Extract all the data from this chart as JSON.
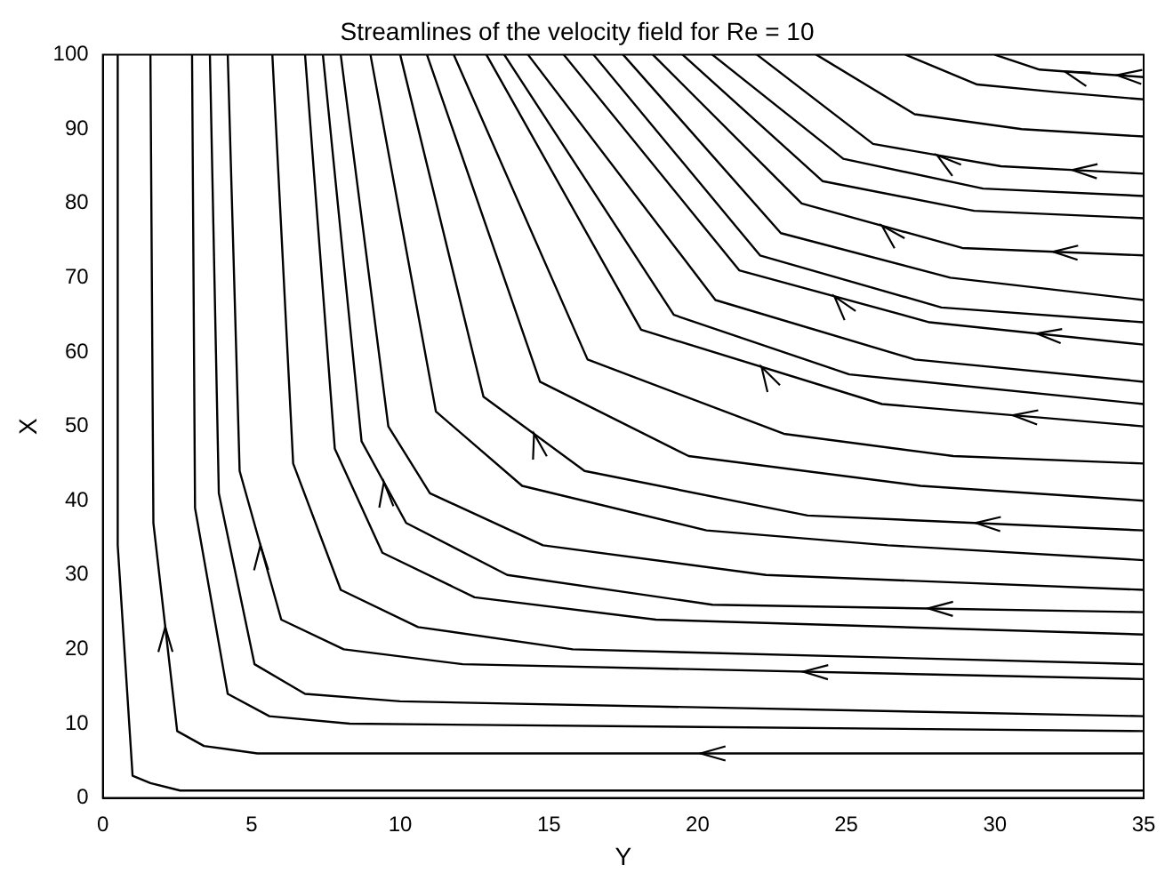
{
  "chart_data": {
    "type": "line",
    "title": "Streamlines of the velocity field for Re = 10",
    "xlabel": "Y",
    "ylabel": "X",
    "xlim": [
      0,
      35
    ],
    "ylim": [
      0,
      100
    ],
    "xticks": [
      0,
      5,
      10,
      15,
      20,
      25,
      30,
      35
    ],
    "yticks": [
      0,
      10,
      20,
      30,
      40,
      50,
      60,
      70,
      80,
      90,
      100
    ],
    "grid": false,
    "legend": false,
    "marker": "none",
    "line_style": "solid",
    "series": [
      {
        "color": "#000000",
        "x": [
          0.5,
          0.5,
          1,
          1.6,
          2.6,
          35
        ],
        "values": [
          100,
          34,
          3,
          2,
          1,
          1
        ]
      },
      {
        "color": "#000000",
        "x": [
          1.6,
          1.7,
          2.5,
          3.4,
          5.2,
          35
        ],
        "values": [
          100,
          37,
          9,
          7,
          6,
          6
        ]
      },
      {
        "color": "#000000",
        "x": [
          3,
          3.1,
          4.2,
          5.6,
          8.3,
          35
        ],
        "values": [
          100,
          39,
          14,
          11,
          10,
          9
        ]
      },
      {
        "color": "#000000",
        "x": [
          3.6,
          3.9,
          5.1,
          6.8,
          10,
          35
        ],
        "values": [
          100,
          41,
          18,
          14,
          13,
          11
        ]
      },
      {
        "color": "#000000",
        "x": [
          4.2,
          4.6,
          6,
          8.1,
          12.1,
          35
        ],
        "values": [
          100,
          44,
          24,
          20,
          18,
          16
        ]
      },
      {
        "color": "#000000",
        "x": [
          5.7,
          6.4,
          8,
          10.6,
          15.8,
          35
        ],
        "values": [
          100,
          45,
          28,
          23,
          20,
          18
        ]
      },
      {
        "color": "#000000",
        "x": [
          6.8,
          7.8,
          9.4,
          12.5,
          18.6,
          35
        ],
        "values": [
          100,
          47,
          33,
          27,
          24,
          22
        ]
      },
      {
        "color": "#000000",
        "x": [
          7.4,
          8.7,
          10.2,
          13.6,
          20.5,
          35
        ],
        "values": [
          100,
          48,
          37,
          30,
          26,
          25
        ]
      },
      {
        "color": "#000000",
        "x": [
          8,
          9.6,
          11,
          14.8,
          22.3,
          35
        ],
        "values": [
          100,
          50,
          41,
          34,
          30,
          28
        ]
      },
      {
        "color": "#000000",
        "x": [
          9,
          11.2,
          14.1,
          20.3,
          26.4,
          35
        ],
        "values": [
          100,
          52,
          42,
          36,
          34,
          32
        ]
      },
      {
        "color": "#000000",
        "x": [
          10,
          12.8,
          16.2,
          23.7,
          35
        ],
        "values": [
          100,
          54,
          44,
          38,
          36
        ]
      },
      {
        "color": "#000000",
        "x": [
          10.9,
          14.7,
          19.7,
          27.5,
          35
        ],
        "values": [
          100,
          56,
          46,
          42,
          40
        ]
      },
      {
        "color": "#000000",
        "x": [
          11.8,
          16.3,
          22.9,
          28.6,
          35
        ],
        "values": [
          100,
          59,
          49,
          46,
          45
        ]
      },
      {
        "color": "#000000",
        "x": [
          12.9,
          18.1,
          26.2,
          35
        ],
        "values": [
          100,
          63,
          53,
          50
        ]
      },
      {
        "color": "#000000",
        "x": [
          13.5,
          19.2,
          25.1,
          35
        ],
        "values": [
          100,
          65,
          57,
          53
        ]
      },
      {
        "color": "#000000",
        "x": [
          14.3,
          20.6,
          27.3,
          35
        ],
        "values": [
          100,
          67,
          59,
          56
        ]
      },
      {
        "color": "#000000",
        "x": [
          15.5,
          21.4,
          27.8,
          35
        ],
        "values": [
          100,
          71,
          64,
          61
        ]
      },
      {
        "color": "#000000",
        "x": [
          16.5,
          22.1,
          28.2,
          35
        ],
        "values": [
          100,
          73,
          66,
          64
        ]
      },
      {
        "color": "#000000",
        "x": [
          17.5,
          22.8,
          28.5,
          35
        ],
        "values": [
          100,
          76,
          70,
          67
        ]
      },
      {
        "color": "#000000",
        "x": [
          18.5,
          23.5,
          28.9,
          35
        ],
        "values": [
          100,
          80,
          74,
          73
        ]
      },
      {
        "color": "#000000",
        "x": [
          19.5,
          24.2,
          29.3,
          35
        ],
        "values": [
          100,
          83,
          79,
          78
        ]
      },
      {
        "color": "#000000",
        "x": [
          20.5,
          24.9,
          29.6,
          35
        ],
        "values": [
          100,
          86,
          82,
          81
        ]
      },
      {
        "color": "#000000",
        "x": [
          22,
          25.9,
          30.2,
          35
        ],
        "values": [
          100,
          88,
          85,
          84
        ]
      },
      {
        "color": "#000000",
        "x": [
          24,
          27.3,
          30.9,
          35
        ],
        "values": [
          100,
          92,
          90,
          89
        ]
      },
      {
        "color": "#000000",
        "x": [
          27,
          29.4,
          32,
          35
        ],
        "values": [
          100,
          96,
          95,
          94
        ]
      },
      {
        "color": "#000000",
        "x": [
          30,
          31.5,
          33.2,
          35
        ],
        "values": [
          100,
          98,
          97.5,
          97
        ]
      }
    ]
  }
}
